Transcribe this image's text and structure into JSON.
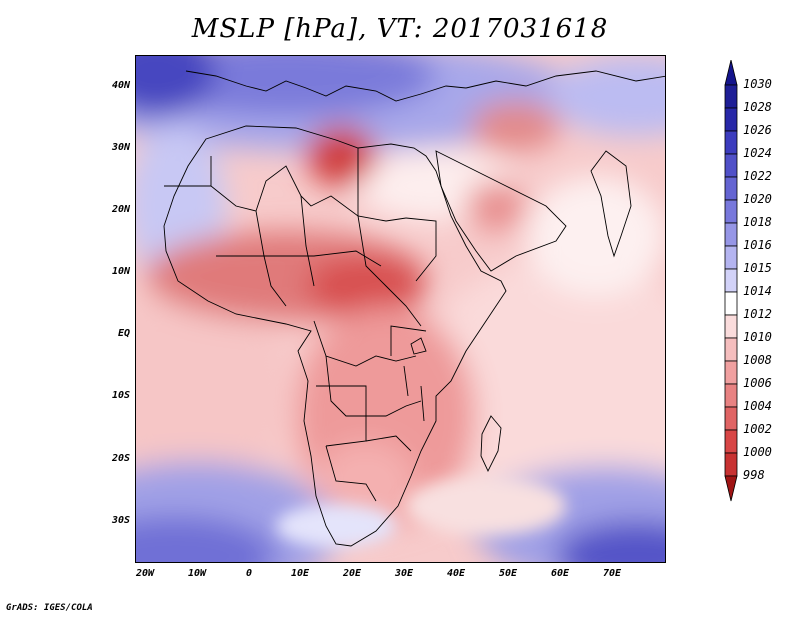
{
  "title": "MSLP [hPa], VT: 2017031618",
  "credit": "GrADS: IGES/COLA",
  "y_axis_labels": [
    "40N",
    "30N",
    "20N",
    "10N",
    "EQ",
    "10S",
    "20S",
    "30S"
  ],
  "x_axis_labels": [
    "20W",
    "10W",
    "0",
    "10E",
    "20E",
    "30E",
    "40E",
    "50E",
    "60E",
    "70E"
  ],
  "colorbar": {
    "levels": [
      "1030",
      "1028",
      "1026",
      "1024",
      "1022",
      "1020",
      "1018",
      "1016",
      "1015",
      "1014",
      "1012",
      "1010",
      "1008",
      "1006",
      "1004",
      "1002",
      "1000",
      "998"
    ],
    "colors": [
      "#1e1e96",
      "#2828a8",
      "#3c3cbe",
      "#5050c8",
      "#6464d2",
      "#7878dc",
      "#9696e6",
      "#b4b4f0",
      "#d2d2f8",
      "#ffffff",
      "#fadcdc",
      "#f5bebe",
      "#f0a0a0",
      "#e88282",
      "#e06464",
      "#d84646",
      "#c83232",
      "#b41e1e"
    ],
    "top_arrow_color": "#14148c",
    "bottom_arrow_color": "#a01414"
  },
  "map_extent": {
    "lon_min": -23,
    "lon_max": 80,
    "lat_min": -36,
    "lat_max": 45
  }
}
